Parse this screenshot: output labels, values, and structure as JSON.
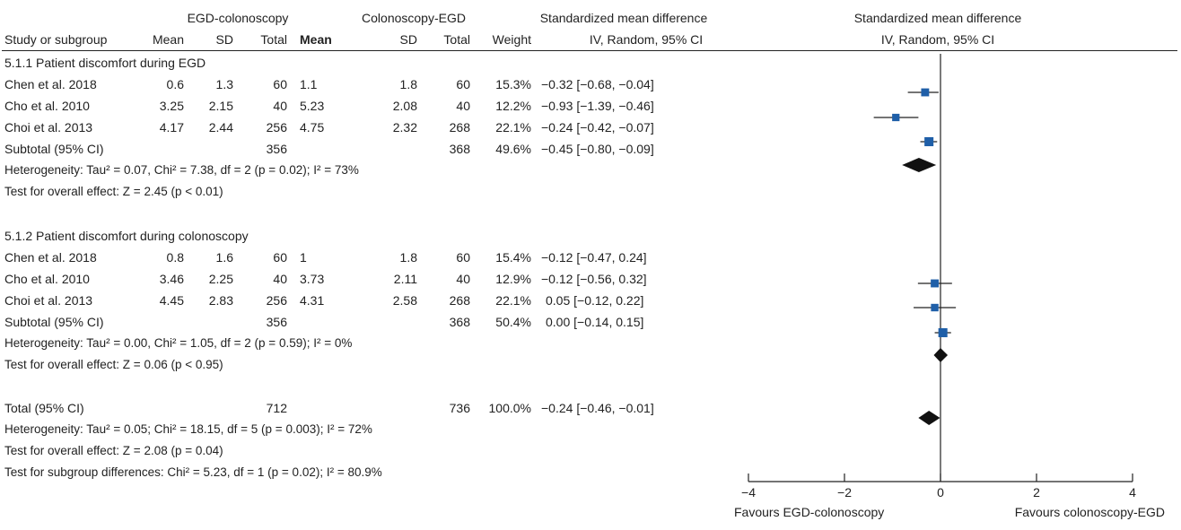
{
  "header": {
    "group1": "EGD-colonoscopy",
    "group2": "Colonoscopy-EGD",
    "smd": "Standardized mean difference",
    "smd_plot": "Standardized mean difference",
    "method": "IV, Random, 95% CI",
    "method_plot": "IV, Random, 95% CI",
    "study_col": "Study or subgroup",
    "mean1": "Mean",
    "sd1": "SD",
    "total1": "Total",
    "mean2": "Mean",
    "sd2": "SD",
    "total2": "Total",
    "weight": "Weight"
  },
  "subgroup1": {
    "title": "5.1.1 Patient discomfort during EGD",
    "rows": [
      {
        "study": "Chen et al. 2018",
        "mean1": "0.6",
        "sd1": "1.3",
        "total1": "60",
        "mean2": "1.1",
        "sd2": "1.8",
        "total2": "60",
        "weight": "15.3%",
        "ci": "−0.32 [−0.68, −0.04]"
      },
      {
        "study": "Cho et al. 2010",
        "mean1": "3.25",
        "sd1": "2.15",
        "total1": "40",
        "mean2": "5.23",
        "sd2": "2.08",
        "total2": "40",
        "weight": "12.2%",
        "ci": "−0.93 [−1.39, −0.46]"
      },
      {
        "study": "Choi et al. 2013",
        "mean1": "4.17",
        "sd1": "2.44",
        "total1": "256",
        "mean2": "4.75",
        "sd2": "2.32",
        "total2": "268",
        "weight": "22.1%",
        "ci": "−0.24 [−0.42, −0.07]"
      }
    ],
    "subtotal": {
      "label": "Subtotal (95% CI)",
      "total1": "356",
      "total2": "368",
      "weight": "49.6%",
      "ci": "−0.45 [−0.80, −0.09]"
    },
    "heterogeneity": "Heterogeneity: Tau² = 0.07, Chi² = 7.38, df = 2 (p = 0.02); I² = 73%",
    "overall": "Test for overall effect: Z = 2.45 (p < 0.01)"
  },
  "subgroup2": {
    "title": "5.1.2 Patient discomfort during colonoscopy",
    "rows": [
      {
        "study": "Chen et al. 2018",
        "mean1": "0.8",
        "sd1": "1.6",
        "total1": "60",
        "mean2": "1",
        "sd2": "1.8",
        "total2": "60",
        "weight": "15.4%",
        "ci": "−0.12 [−0.47, 0.24]"
      },
      {
        "study": "Cho et al.  2010",
        "mean1": "3.46",
        "sd1": "2.25",
        "total1": "40",
        "mean2": "3.73",
        "sd2": "2.11",
        "total2": "40",
        "weight": "12.9%",
        "ci": "−0.12 [−0.56, 0.32]"
      },
      {
        "study": "Choi et al.  2013",
        "mean1": "4.45",
        "sd1": "2.83",
        "total1": "256",
        "mean2": "4.31",
        "sd2": "2.58",
        "total2": "268",
        "weight": "22.1%",
        "ci": "0.05 [−0.12, 0.22]"
      }
    ],
    "subtotal": {
      "label": "Subtotal (95% CI)",
      "total1": "356",
      "total2": "368",
      "weight": "50.4%",
      "ci": "0.00 [−0.14, 0.15]"
    },
    "heterogeneity": "Heterogeneity: Tau² = 0.00, Chi² = 1.05, df = 2 (p = 0.59); I² = 0%",
    "overall": "Test for overall effect: Z = 0.06 (p < 0.95)"
  },
  "total": {
    "label": "Total (95% CI)",
    "total1": "712",
    "total2": "736",
    "weight": "100.0%",
    "ci": "−0.24 [−0.46, −0.01]"
  },
  "footer": {
    "heterogeneity": "Heterogeneity: Tau² = 0.05; Chi² = 18.15, df = 5 (p = 0.003); I² = 72%",
    "overall": "Test for overall effect: Z = 2.08 (p = 0.04)",
    "subgroup_diff": "Test for subgroup differences: Chi² = 5.23, df = 1 (p = 0.02); I² = 80.9%"
  },
  "chart_data": {
    "type": "forest",
    "x_tick_labels": [
      "−4",
      "−2",
      "0",
      "2",
      "4"
    ],
    "x_ticks": [
      -4,
      -2,
      0,
      2,
      4
    ],
    "xlim": [
      -4,
      4
    ],
    "favours_left": "Favours EGD-colonoscopy",
    "favours_right": "Favours colonoscopy-EGD",
    "marker_color": "#1f5fa8",
    "studies": [
      {
        "study": "Chen et al. 2018",
        "subgroup": "5.1.1",
        "smd": -0.32,
        "lo": -0.68,
        "hi": -0.04,
        "weight": 15.3
      },
      {
        "study": "Cho et al. 2010",
        "subgroup": "5.1.1",
        "smd": -0.93,
        "lo": -1.39,
        "hi": -0.46,
        "weight": 12.2
      },
      {
        "study": "Choi et al. 2013",
        "subgroup": "5.1.1",
        "smd": -0.24,
        "lo": -0.42,
        "hi": -0.07,
        "weight": 22.1
      },
      {
        "study": "Chen et al. 2018",
        "subgroup": "5.1.2",
        "smd": -0.12,
        "lo": -0.47,
        "hi": 0.24,
        "weight": 15.4
      },
      {
        "study": "Cho et al.  2010",
        "subgroup": "5.1.2",
        "smd": -0.12,
        "lo": -0.56,
        "hi": 0.32,
        "weight": 12.9
      },
      {
        "study": "Choi et al.  2013",
        "subgroup": "5.1.2",
        "smd": 0.05,
        "lo": -0.12,
        "hi": 0.22,
        "weight": 22.1
      }
    ],
    "summaries": [
      {
        "label": "Subtotal 5.1.1",
        "smd": -0.45,
        "lo": -0.8,
        "hi": -0.09
      },
      {
        "label": "Subtotal 5.1.2",
        "smd": 0.0,
        "lo": -0.14,
        "hi": 0.15
      },
      {
        "label": "Total",
        "smd": -0.24,
        "lo": -0.46,
        "hi": -0.01
      }
    ]
  }
}
